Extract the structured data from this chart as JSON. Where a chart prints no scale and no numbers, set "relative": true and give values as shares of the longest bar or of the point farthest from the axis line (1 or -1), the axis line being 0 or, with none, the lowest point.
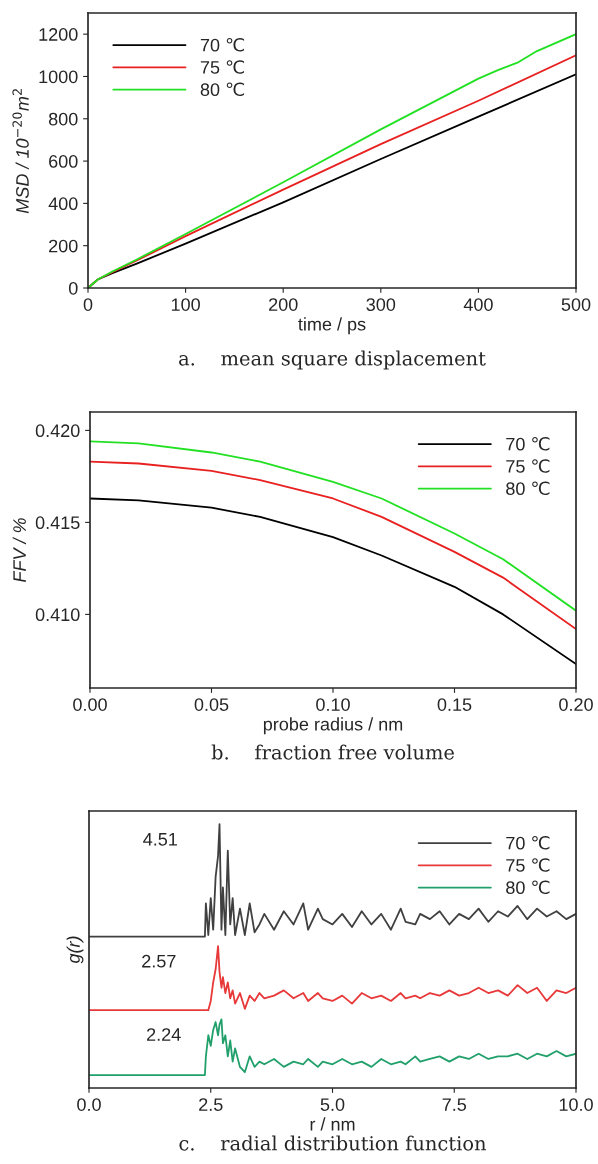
{
  "chart_data": [
    {
      "type": "line",
      "xlabel": "time / ps",
      "ylabel": "MSD / 10$^{−20}$m$^{2}$",
      "annotations": [
        "a.    mean square displacement"
      ],
      "x": [
        0,
        10,
        25,
        50,
        100,
        200,
        300,
        400,
        500
      ],
      "series": [
        {
          "name": "70 ℃",
          "color": "#000000",
          "values": [
            0,
            40,
            70,
            115,
            210,
            405,
            610,
            810,
            1010
          ]
        },
        {
          "name": "75 ℃",
          "color": "#e82020",
          "values": [
            0,
            40,
            75,
            130,
            245,
            465,
            680,
            885,
            1100
          ]
        },
        {
          "name": "80 ℃",
          "color": "#22e022",
          "x": [
            0,
            10,
            25,
            50,
            100,
            200,
            300,
            400,
            420,
            440,
            460,
            500
          ],
          "values": [
            0,
            40,
            78,
            135,
            255,
            500,
            750,
            990,
            1030,
            1065,
            1120,
            1200
          ]
        }
      ],
      "xlim": [
        0,
        500
      ],
      "ylim": [
        0,
        1300
      ],
      "xticks": [
        0,
        100,
        200,
        300,
        400,
        500
      ],
      "yticks": [
        0,
        200,
        400,
        600,
        800,
        1000,
        1200
      ],
      "legend": "top left",
      "grid": false
    },
    {
      "type": "line",
      "xlabel": "probe radius / nm",
      "ylabel": "FFV / %",
      "annotations": [
        "b.    fraction free volume"
      ],
      "x": [
        0,
        0.02,
        0.05,
        0.07,
        0.1,
        0.12,
        0.15,
        0.17,
        0.2
      ],
      "series": [
        {
          "name": "70 ℃",
          "color": "#000000",
          "values": [
            0.4163,
            0.4162,
            0.4158,
            0.4153,
            0.4142,
            0.4132,
            0.4115,
            0.41,
            0.4073
          ]
        },
        {
          "name": "75 ℃",
          "color": "#e82020",
          "values": [
            0.4183,
            0.4182,
            0.4178,
            0.4173,
            0.4163,
            0.4153,
            0.4134,
            0.412,
            0.4092
          ]
        },
        {
          "name": "80 ℃",
          "color": "#22e022",
          "values": [
            0.4194,
            0.4193,
            0.4188,
            0.4183,
            0.4172,
            0.4163,
            0.4144,
            0.413,
            0.4102
          ]
        }
      ],
      "xlim": [
        0,
        0.2
      ],
      "ylim": [
        0.406,
        0.421
      ],
      "xticks": [
        {
          "value": 0,
          "label": "0.00"
        },
        0.05,
        {
          "value": 0.1,
          "label": "0.10"
        },
        0.15,
        {
          "value": 0.2,
          "label": "0.20"
        }
      ],
      "yticks": [
        {
          "value": 0.41,
          "label": "0.410"
        },
        0.415,
        {
          "value": 0.42,
          "label": "0.420"
        }
      ],
      "legend": "top right",
      "grid": false
    },
    {
      "type": "line",
      "xlabel": "r / nm",
      "ylabel": "g(r)",
      "relative": true,
      "annotations": [
        {
          "text": "4.51",
          "x": 2.68,
          "y": 1.0
        },
        {
          "text": "2.57",
          "x": 2.65,
          "y": 0.538
        },
        {
          "text": "2.24",
          "x": 2.75,
          "y": 0.26
        },
        "c.    radial distribution function"
      ],
      "x": [
        0,
        2.38,
        2.4,
        2.45,
        2.5,
        2.55,
        2.6,
        2.65,
        2.68,
        2.72,
        2.75,
        2.8,
        2.85,
        2.9,
        2.95,
        3.0,
        3.1,
        3.2,
        3.3,
        3.4,
        3.5,
        3.6,
        3.8,
        4.0,
        4.2,
        4.4,
        4.5,
        4.7,
        4.8,
        5.0,
        5.2,
        5.4,
        5.6,
        5.8,
        6.0,
        6.2,
        6.4,
        6.5,
        6.7,
        6.8,
        7.0,
        7.2,
        7.4,
        7.6,
        7.8,
        8.0,
        8.2,
        8.4,
        8.6,
        8.8,
        9.0,
        9.2,
        9.4,
        9.6,
        9.8,
        10.0
      ],
      "series": [
        {
          "name": "70 ℃",
          "color": "#404040",
          "values": [
            0.574,
            0.574,
            0.7,
            0.58,
            0.72,
            0.6,
            0.8,
            0.88,
            1.0,
            0.6,
            0.76,
            0.58,
            0.9,
            0.62,
            0.72,
            0.58,
            0.68,
            0.58,
            0.7,
            0.59,
            0.62,
            0.66,
            0.6,
            0.67,
            0.62,
            0.7,
            0.6,
            0.68,
            0.64,
            0.62,
            0.66,
            0.61,
            0.67,
            0.62,
            0.66,
            0.6,
            0.68,
            0.63,
            0.62,
            0.66,
            0.64,
            0.67,
            0.62,
            0.66,
            0.64,
            0.68,
            0.63,
            0.67,
            0.65,
            0.69,
            0.64,
            0.68,
            0.65,
            0.67,
            0.64,
            0.66
          ]
        },
        {
          "name": "75 ℃",
          "color": "#e8393a",
          "values": [
            0.295,
            0.295,
            0.295,
            0.295,
            0.33,
            0.4,
            0.45,
            0.538,
            0.44,
            0.38,
            0.42,
            0.36,
            0.4,
            0.34,
            0.37,
            0.32,
            0.36,
            0.3,
            0.35,
            0.33,
            0.36,
            0.34,
            0.35,
            0.37,
            0.34,
            0.36,
            0.33,
            0.36,
            0.34,
            0.33,
            0.35,
            0.32,
            0.36,
            0.34,
            0.35,
            0.33,
            0.36,
            0.34,
            0.35,
            0.34,
            0.36,
            0.35,
            0.37,
            0.35,
            0.36,
            0.38,
            0.36,
            0.37,
            0.35,
            0.39,
            0.36,
            0.38,
            0.33,
            0.37,
            0.36,
            0.38
          ]
        },
        {
          "name": "80 ℃",
          "color": "#22a06b",
          "values": [
            0.049,
            0.049,
            0.12,
            0.2,
            0.16,
            0.22,
            0.25,
            0.2,
            0.24,
            0.26,
            0.17,
            0.2,
            0.12,
            0.18,
            0.1,
            0.15,
            0.08,
            0.06,
            0.12,
            0.08,
            0.1,
            0.09,
            0.11,
            0.08,
            0.1,
            0.09,
            0.11,
            0.08,
            0.1,
            0.09,
            0.11,
            0.09,
            0.1,
            0.08,
            0.11,
            0.09,
            0.1,
            0.09,
            0.12,
            0.1,
            0.11,
            0.12,
            0.1,
            0.12,
            0.11,
            0.13,
            0.11,
            0.12,
            0.12,
            0.13,
            0.11,
            0.13,
            0.12,
            0.14,
            0.12,
            0.13
          ]
        }
      ],
      "xlim": [
        0,
        10
      ],
      "xticks": [
        {
          "value": 0,
          "label": "0.0"
        },
        2.5,
        {
          "value": 5,
          "label": "5.0"
        },
        7.5,
        {
          "value": 10,
          "label": "10.0"
        }
      ],
      "legend": "top right",
      "grid": false
    }
  ]
}
